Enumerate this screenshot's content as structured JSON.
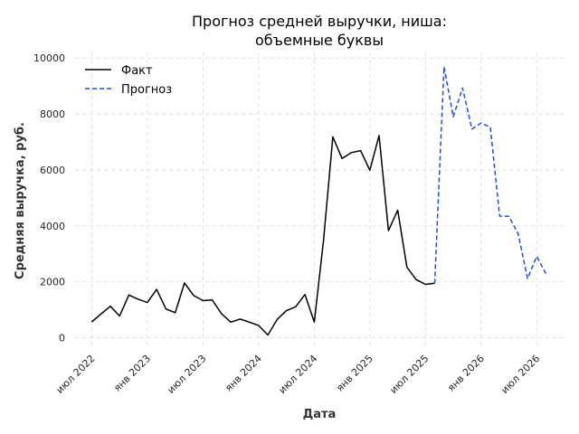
{
  "chart_data": {
    "type": "line",
    "title_lines": [
      "Прогноз средней выручки, ниша:",
      "объемные буквы"
    ],
    "xlabel": "Дата",
    "ylabel": "Средняя выручка, руб.",
    "xlim": [
      2022.35,
      2026.75
    ],
    "ylim": [
      -400,
      10200
    ],
    "x_ticks": [
      {
        "x": 2022.5,
        "label": "июл 2022"
      },
      {
        "x": 2023.0,
        "label": "янв 2023"
      },
      {
        "x": 2023.5,
        "label": "июл 2023"
      },
      {
        "x": 2024.0,
        "label": "янв 2024"
      },
      {
        "x": 2024.5,
        "label": "июл 2024"
      },
      {
        "x": 2025.0,
        "label": "янв 2025"
      },
      {
        "x": 2025.5,
        "label": "июл 2025"
      },
      {
        "x": 2026.0,
        "label": "янв 2026"
      },
      {
        "x": 2026.5,
        "label": "июл 2026"
      }
    ],
    "y_ticks": [
      {
        "y": 0,
        "label": "0"
      },
      {
        "y": 2000,
        "label": "2000"
      },
      {
        "y": 4000,
        "label": "4000"
      },
      {
        "y": 6000,
        "label": "6000"
      },
      {
        "y": 8000,
        "label": "8000"
      },
      {
        "y": 10000,
        "label": "10000"
      }
    ],
    "grid": true,
    "legend_position": "top-left",
    "series": [
      {
        "name": "Факт",
        "color": "#000000",
        "dash": "solid",
        "points": [
          [
            2022.5,
            570
          ],
          [
            2022.583,
            850
          ],
          [
            2022.667,
            1130
          ],
          [
            2022.75,
            780
          ],
          [
            2022.833,
            1530
          ],
          [
            2022.917,
            1380
          ],
          [
            2023.0,
            1260
          ],
          [
            2023.083,
            1730
          ],
          [
            2023.167,
            1030
          ],
          [
            2023.25,
            900
          ],
          [
            2023.333,
            1960
          ],
          [
            2023.417,
            1510
          ],
          [
            2023.5,
            1330
          ],
          [
            2023.583,
            1350
          ],
          [
            2023.667,
            860
          ],
          [
            2023.75,
            560
          ],
          [
            2023.833,
            670
          ],
          [
            2023.917,
            560
          ],
          [
            2024.0,
            440
          ],
          [
            2024.083,
            100
          ],
          [
            2024.167,
            660
          ],
          [
            2024.25,
            970
          ],
          [
            2024.333,
            1110
          ],
          [
            2024.417,
            1550
          ],
          [
            2024.5,
            560
          ],
          [
            2024.583,
            3480
          ],
          [
            2024.667,
            7180
          ],
          [
            2024.75,
            6410
          ],
          [
            2024.833,
            6620
          ],
          [
            2024.917,
            6690
          ],
          [
            2025.0,
            5990
          ],
          [
            2025.083,
            7230
          ],
          [
            2025.167,
            3830
          ],
          [
            2025.25,
            4560
          ],
          [
            2025.333,
            2520
          ],
          [
            2025.417,
            2080
          ],
          [
            2025.5,
            1910
          ],
          [
            2025.583,
            1950
          ]
        ]
      },
      {
        "name": "Прогноз",
        "color": "#1f4fd8",
        "dash": "dashed",
        "points": [
          [
            2025.583,
            1950
          ],
          [
            2025.667,
            9690
          ],
          [
            2025.75,
            7900
          ],
          [
            2025.833,
            8930
          ],
          [
            2025.917,
            7460
          ],
          [
            2026.0,
            7680
          ],
          [
            2026.083,
            7520
          ],
          [
            2026.167,
            4350
          ],
          [
            2026.25,
            4340
          ],
          [
            2026.333,
            3720
          ],
          [
            2026.417,
            2120
          ],
          [
            2026.5,
            2910
          ],
          [
            2026.583,
            2290
          ]
        ]
      }
    ]
  }
}
